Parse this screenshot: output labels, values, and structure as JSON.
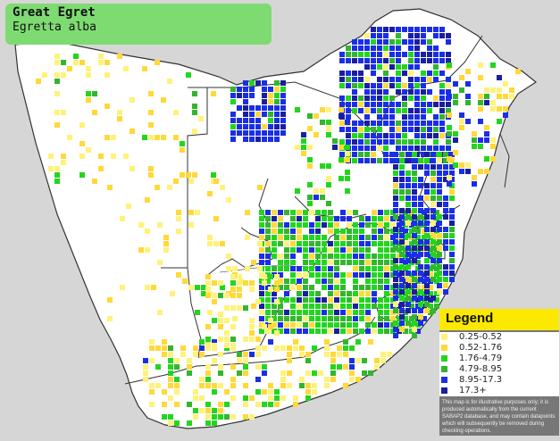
{
  "species": {
    "common_name": "Great Egret",
    "scientific_name": "Egretta alba"
  },
  "legend": {
    "title": "Legend",
    "classes": [
      {
        "label": "0.25-0.52",
        "color": "#fff27a"
      },
      {
        "label": "0.52-1.76",
        "color": "#ffd93a"
      },
      {
        "label": "1.76-4.79",
        "color": "#22d61e"
      },
      {
        "label": "4.79-8.95",
        "color": "#33b52e"
      },
      {
        "label": "8.95-17.3",
        "color": "#1a2ee6"
      },
      {
        "label": "17.3+",
        "color": "#1a1ea0"
      }
    ],
    "note": "This map is for illustrative purposes only; it is produced automatically from the current SABAP2 database, and may contain datapoints which will subsequently be removed during checking operations."
  },
  "colors": {
    "land": "#ffffff",
    "sea": "#d6d6d6",
    "border": "#222222",
    "title_bg": "#7edb72",
    "legend_head": "#fce800"
  }
}
